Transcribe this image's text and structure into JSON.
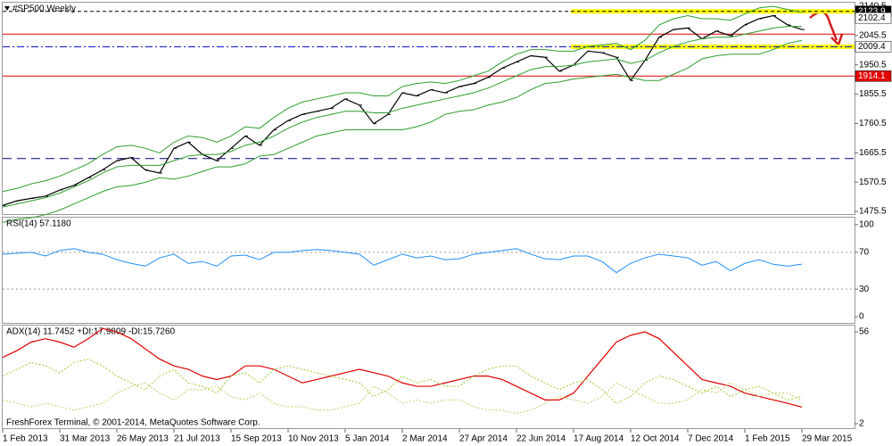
{
  "chart_data": [
    {
      "type": "line",
      "title": "#SP500,Weekly",
      "ylim": [
        1467,
        2152
      ],
      "yticks": [
        1475.5,
        1570.5,
        1665.5,
        1760.5,
        1855.5,
        1950.5,
        2045.5,
        2140.5
      ],
      "series": [
        {
          "color": "#000000",
          "width": 1.2,
          "values": [
            1495,
            1510,
            1518,
            1525,
            1545,
            1560,
            1585,
            1610,
            1640,
            1650,
            1610,
            1600,
            1680,
            1700,
            1660,
            1640,
            1680,
            1720,
            1690,
            1740,
            1770,
            1790,
            1800,
            1810,
            1840,
            1820,
            1760,
            1790,
            1860,
            1850,
            1870,
            1860,
            1880,
            1890,
            1910,
            1940,
            1960,
            1980,
            1975,
            1930,
            1950,
            1995,
            1990,
            1975,
            1900,
            1965,
            2040,
            2065,
            2070,
            2035,
            2060,
            2045,
            2080,
            2100,
            2110,
            2080,
            2065
          ]
        },
        {
          "color": "#2e9e2e",
          "width": 1,
          "values": [
            1540,
            1550,
            1565,
            1575,
            1590,
            1610,
            1630,
            1660,
            1685,
            1690,
            1680,
            1665,
            1700,
            1720,
            1715,
            1700,
            1720,
            1750,
            1745,
            1780,
            1810,
            1830,
            1840,
            1850,
            1860,
            1860,
            1850,
            1850,
            1880,
            1890,
            1895,
            1890,
            1900,
            1915,
            1930,
            1960,
            1985,
            2000,
            2000,
            1995,
            1995,
            2010,
            2015,
            2020,
            2000,
            2030,
            2080,
            2100,
            2110,
            2100,
            2100,
            2095,
            2115,
            2135,
            2140,
            2130,
            2120
          ]
        },
        {
          "color": "#2e9e2e",
          "width": 1,
          "values": [
            1490,
            1500,
            1510,
            1520,
            1535,
            1555,
            1575,
            1600,
            1620,
            1625,
            1625,
            1625,
            1640,
            1655,
            1660,
            1660,
            1670,
            1690,
            1700,
            1720,
            1745,
            1765,
            1780,
            1790,
            1800,
            1800,
            1795,
            1795,
            1810,
            1820,
            1830,
            1840,
            1850,
            1860,
            1875,
            1895,
            1915,
            1935,
            1945,
            1945,
            1950,
            1960,
            1965,
            1970,
            1955,
            1965,
            1990,
            2010,
            2025,
            2035,
            2040,
            2040,
            2050,
            2060,
            2070,
            2075,
            2075
          ]
        },
        {
          "color": "#2e9e2e",
          "width": 1,
          "values": [
            1440,
            1450,
            1455,
            1465,
            1480,
            1500,
            1520,
            1540,
            1555,
            1560,
            1570,
            1585,
            1580,
            1590,
            1605,
            1620,
            1620,
            1630,
            1655,
            1660,
            1680,
            1700,
            1720,
            1730,
            1740,
            1740,
            1740,
            1740,
            1740,
            1750,
            1765,
            1790,
            1800,
            1805,
            1820,
            1830,
            1845,
            1870,
            1890,
            1895,
            1905,
            1910,
            1915,
            1920,
            1910,
            1900,
            1900,
            1920,
            1940,
            1970,
            1980,
            1985,
            1985,
            1985,
            2000,
            2020,
            2030
          ]
        }
      ],
      "levels": [
        {
          "value": 2123.9,
          "color": "#000000",
          "dash": "4 3",
          "highlight": "#ffff00",
          "tag": "#000000",
          "tagtext": "#ffffff"
        },
        {
          "value": 2102.4,
          "tag": "#ffffff",
          "tagtext": "#000000"
        },
        {
          "value": 2050,
          "color": "#e00000"
        },
        {
          "value": 2009.4,
          "color": "#0000c0",
          "dash": "8 3 2 3",
          "highlight": "#ffff00",
          "tag": "#ffffff",
          "tagtext": "#000000"
        },
        {
          "value": 1914.1,
          "color": "#e00000",
          "tag": "#e00000",
          "tagtext": "#ffffff"
        },
        {
          "value": 1647,
          "color": "#000080",
          "dash": "10 6"
        }
      ]
    },
    {
      "type": "line",
      "title": "RSI(14) 57.1180",
      "ylim": [
        -6.7,
        107.7
      ],
      "yticks": [
        0,
        30,
        70,
        100
      ],
      "levels": [
        {
          "value": 30,
          "color": "#999999",
          "dash": "2 3"
        },
        {
          "value": 70,
          "color": "#999999",
          "dash": "2 3"
        }
      ],
      "series": [
        {
          "color": "#1e90ff",
          "width": 1,
          "values": [
            68,
            69,
            70,
            66,
            72,
            74,
            70,
            68,
            62,
            58,
            55,
            64,
            68,
            58,
            60,
            55,
            66,
            67,
            62,
            70,
            70,
            72,
            73,
            72,
            70,
            68,
            56,
            62,
            68,
            64,
            66,
            62,
            63,
            68,
            70,
            72,
            74,
            68,
            63,
            62,
            66,
            66,
            60,
            48,
            58,
            64,
            68,
            66,
            64,
            56,
            60,
            50,
            58,
            62,
            57,
            55,
            57.118
          ]
        }
      ]
    },
    {
      "type": "line",
      "title": "ADX(14) 11.7452 +DI:17.9809 -DI:15.7260",
      "ylim": [
        -0.6,
        59.7
      ],
      "yticks": [
        2,
        56
      ],
      "categories": [
        "1 Feb 2013",
        null,
        null,
        null,
        "31 Mar 2013",
        null,
        null,
        null,
        "26 May 2013",
        null,
        null,
        null,
        "21 Jul 2013",
        null,
        null,
        null,
        "15 Sep 2013",
        null,
        null,
        null,
        "10 Nov 2013",
        null,
        null,
        null,
        "5 Jan 2014",
        null,
        null,
        null,
        "2 Mar 2014",
        null,
        null,
        null,
        "27 Apr 2014",
        null,
        null,
        null,
        "22 Jun 2014",
        null,
        null,
        null,
        "17 Aug 2014",
        null,
        null,
        null,
        "12 Oct 2014",
        null,
        null,
        null,
        "7 Dec 2014",
        null,
        null,
        null,
        "1 Feb 2015",
        null,
        null,
        null,
        "29 Mar 2015"
      ],
      "series": [
        {
          "color": "#e00000",
          "width": 1.2,
          "values": [
            41,
            45,
            50,
            52,
            50,
            47,
            52,
            58,
            56,
            52,
            46,
            40,
            36,
            34,
            30,
            28,
            30,
            36,
            36,
            34,
            30,
            26,
            28,
            30,
            32,
            34,
            32,
            30,
            26,
            24,
            24,
            26,
            28,
            30,
            30,
            28,
            24,
            20,
            16,
            16,
            20,
            30,
            40,
            50,
            54,
            56,
            52,
            44,
            36,
            28,
            26,
            24,
            20,
            18,
            16,
            14,
            11.7452
          ]
        },
        {
          "color": "#9acd32",
          "width": 1,
          "dash": "2 2",
          "values": [
            30,
            34,
            38,
            36,
            32,
            38,
            40,
            36,
            30,
            26,
            22,
            30,
            34,
            26,
            24,
            20,
            30,
            32,
            26,
            34,
            36,
            34,
            32,
            30,
            28,
            26,
            18,
            22,
            30,
            26,
            28,
            24,
            24,
            30,
            34,
            36,
            36,
            30,
            26,
            22,
            26,
            28,
            22,
            14,
            18,
            26,
            30,
            28,
            24,
            20,
            24,
            18,
            22,
            24,
            20,
            16,
            17.9809
          ]
        },
        {
          "color": "#c8c864",
          "width": 1,
          "dash": "2 2",
          "values": [
            16,
            14,
            12,
            14,
            12,
            10,
            12,
            14,
            20,
            24,
            26,
            20,
            16,
            22,
            22,
            24,
            18,
            16,
            20,
            14,
            12,
            12,
            10,
            10,
            12,
            14,
            24,
            20,
            14,
            16,
            14,
            16,
            16,
            12,
            10,
            10,
            8,
            10,
            14,
            18,
            16,
            14,
            18,
            26,
            22,
            18,
            14,
            14,
            16,
            22,
            20,
            26,
            22,
            18,
            20,
            20,
            15.726
          ]
        }
      ]
    }
  ],
  "footer": "FreshForex Terminal, © 2001-2014, MetaQuotes Software Corp."
}
